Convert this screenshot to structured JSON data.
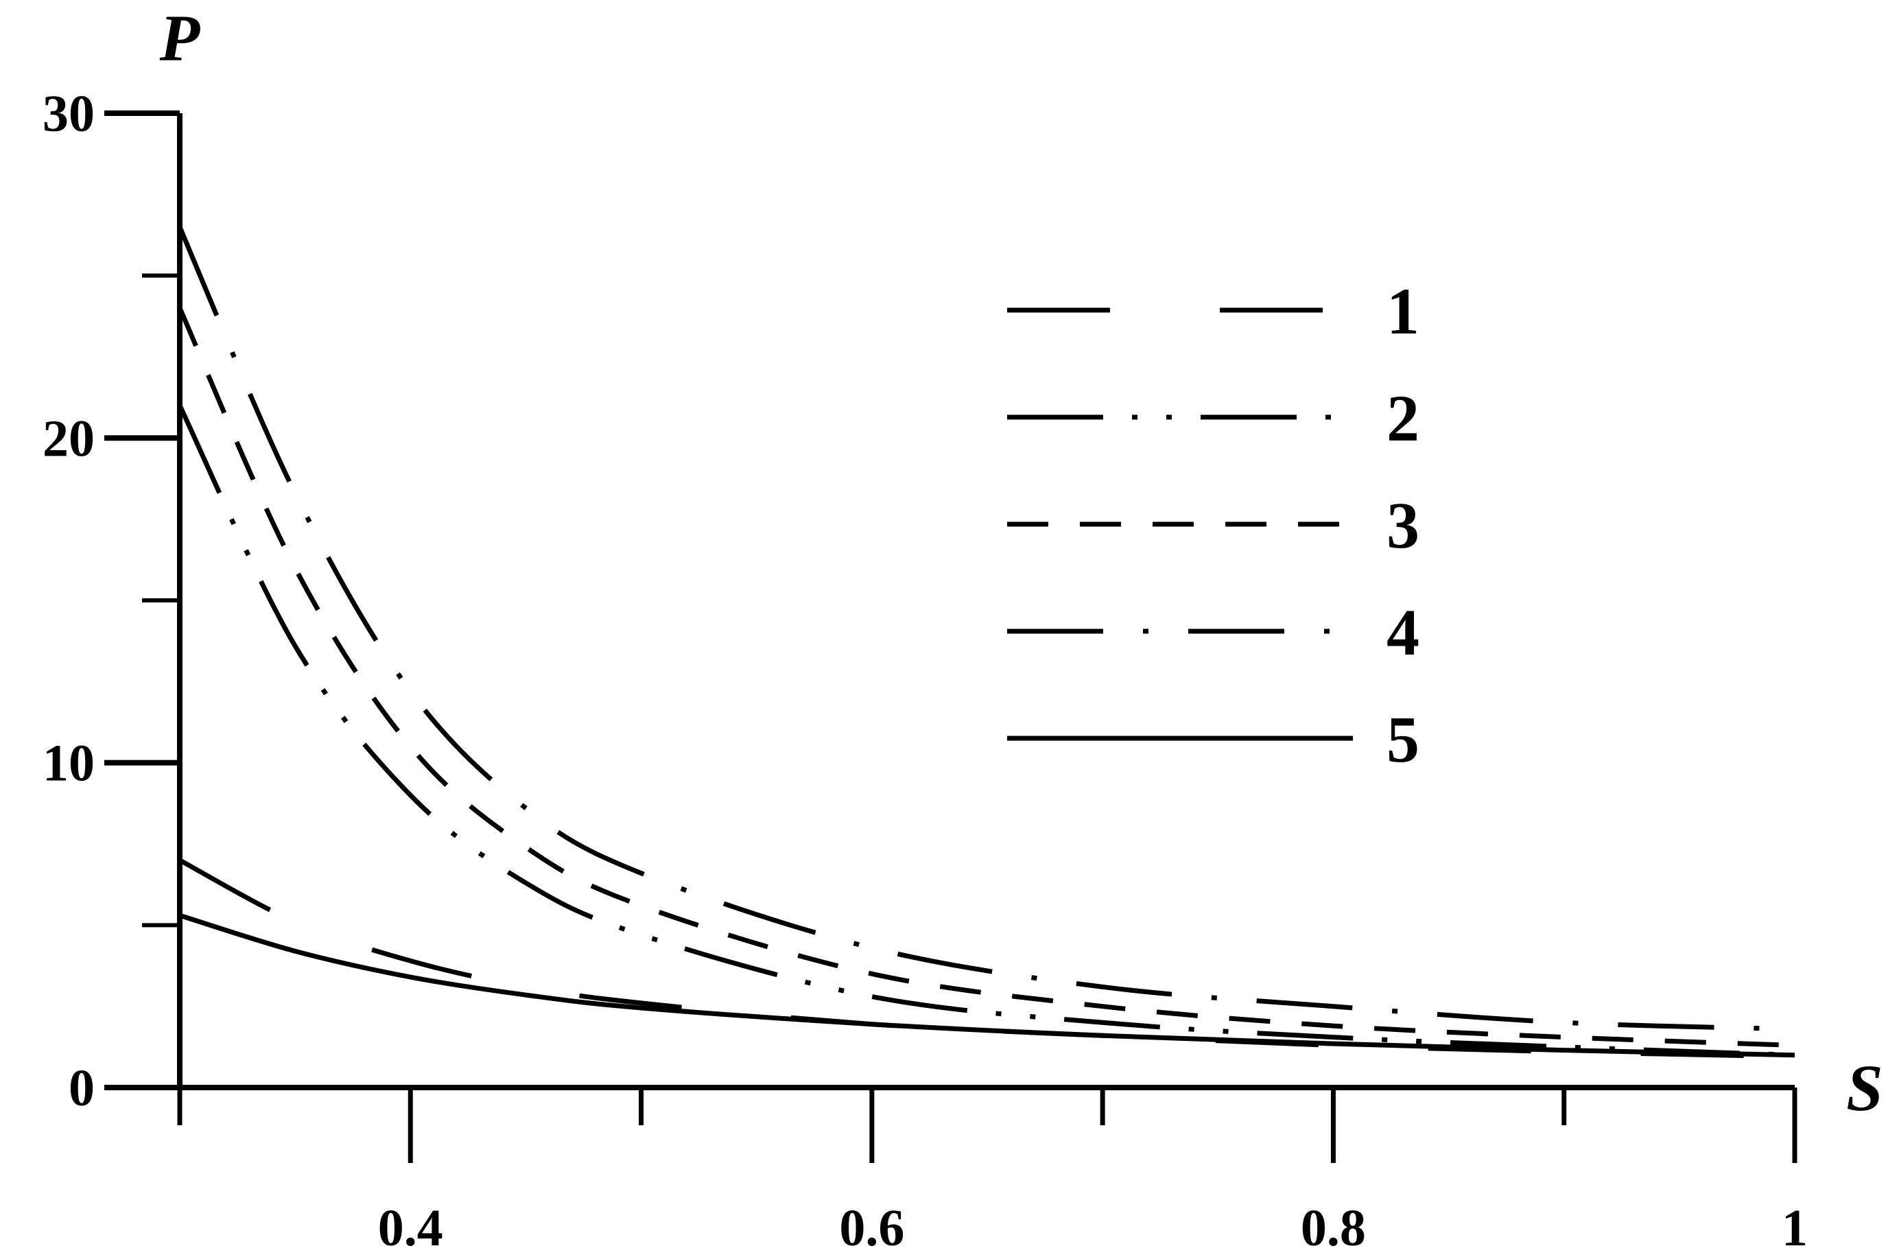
{
  "chart_data": {
    "type": "line",
    "title": "",
    "xlabel": "S",
    "ylabel": "P",
    "xlim": [
      0.3,
      1.0
    ],
    "ylim": [
      0,
      30
    ],
    "grid": false,
    "legend_position": "top-right",
    "x_ticks": [
      {
        "value": 0.3,
        "label": ""
      },
      {
        "value": 0.4,
        "label": "0.4"
      },
      {
        "value": 0.5,
        "label": ""
      },
      {
        "value": 0.6,
        "label": "0.6"
      },
      {
        "value": 0.7,
        "label": ""
      },
      {
        "value": 0.8,
        "label": "0.8"
      },
      {
        "value": 0.9,
        "label": ""
      },
      {
        "value": 1.0,
        "label": "1"
      }
    ],
    "y_ticks": [
      {
        "value": 0,
        "label": "0"
      },
      {
        "value": 5,
        "label": ""
      },
      {
        "value": 10,
        "label": "10"
      },
      {
        "value": 15,
        "label": ""
      },
      {
        "value": 20,
        "label": "20"
      },
      {
        "value": 25,
        "label": ""
      },
      {
        "value": 30,
        "label": "30"
      }
    ],
    "x": [
      0.3,
      0.35,
      0.4,
      0.45,
      0.5,
      0.6,
      0.7,
      0.8,
      0.9,
      1.0
    ],
    "series": [
      {
        "name": "1",
        "dash": "long-dash",
        "values": [
          7.0,
          5.1,
          3.9,
          3.1,
          2.6,
          1.95,
          1.6,
          1.3,
          1.1,
          0.95
        ]
      },
      {
        "name": "2",
        "dash": "dash-dot-dot",
        "values": [
          21.0,
          13.6,
          9.0,
          6.3,
          4.7,
          2.8,
          2.0,
          1.55,
          1.25,
          1.0
        ]
      },
      {
        "name": "3",
        "dash": "short-dash",
        "values": [
          24.0,
          16.0,
          10.5,
          7.4,
          5.6,
          3.5,
          2.5,
          1.9,
          1.55,
          1.3
        ]
      },
      {
        "name": "4",
        "dash": "dash-dot",
        "values": [
          26.5,
          18.3,
          12.2,
          8.6,
          6.6,
          4.3,
          3.1,
          2.5,
          2.0,
          1.8
        ]
      },
      {
        "name": "5",
        "dash": "solid",
        "values": [
          5.3,
          4.2,
          3.4,
          2.85,
          2.45,
          1.95,
          1.6,
          1.35,
          1.15,
          1.0
        ]
      }
    ]
  }
}
